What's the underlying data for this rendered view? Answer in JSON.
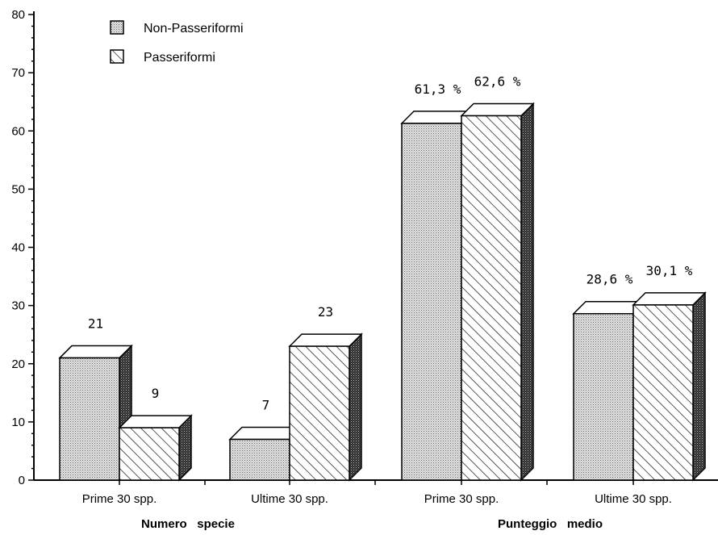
{
  "chart_data": {
    "type": "bar",
    "ylim": [
      0,
      80
    ],
    "yticks": [
      0,
      10,
      20,
      30,
      40,
      50,
      60,
      70,
      80
    ],
    "grid": false,
    "legend_position": "top-left",
    "legend": [
      {
        "name": "Non-Passeriformi",
        "pattern": "dotted"
      },
      {
        "name": "Passeriformi",
        "pattern": "hatched"
      }
    ],
    "categories": [
      "Prime 30 spp.",
      "Ultime 30 spp.",
      "Prime 30 spp.",
      "Ultime 30 spp."
    ],
    "groups": [
      {
        "label": "Numero   specie",
        "categories": [
          0,
          1
        ]
      },
      {
        "label": "Punteggio   medio",
        "categories": [
          2,
          3
        ]
      }
    ],
    "series": [
      {
        "name": "Non-Passeriformi",
        "values": [
          21,
          7,
          61.3,
          28.6
        ],
        "labels": [
          "21",
          "7",
          "61,3 %",
          "28,6 %"
        ]
      },
      {
        "name": "Passeriformi",
        "values": [
          9,
          23,
          62.6,
          30.1
        ],
        "labels": [
          "9",
          "23",
          "62,6 %",
          "30,1 %"
        ]
      }
    ]
  }
}
